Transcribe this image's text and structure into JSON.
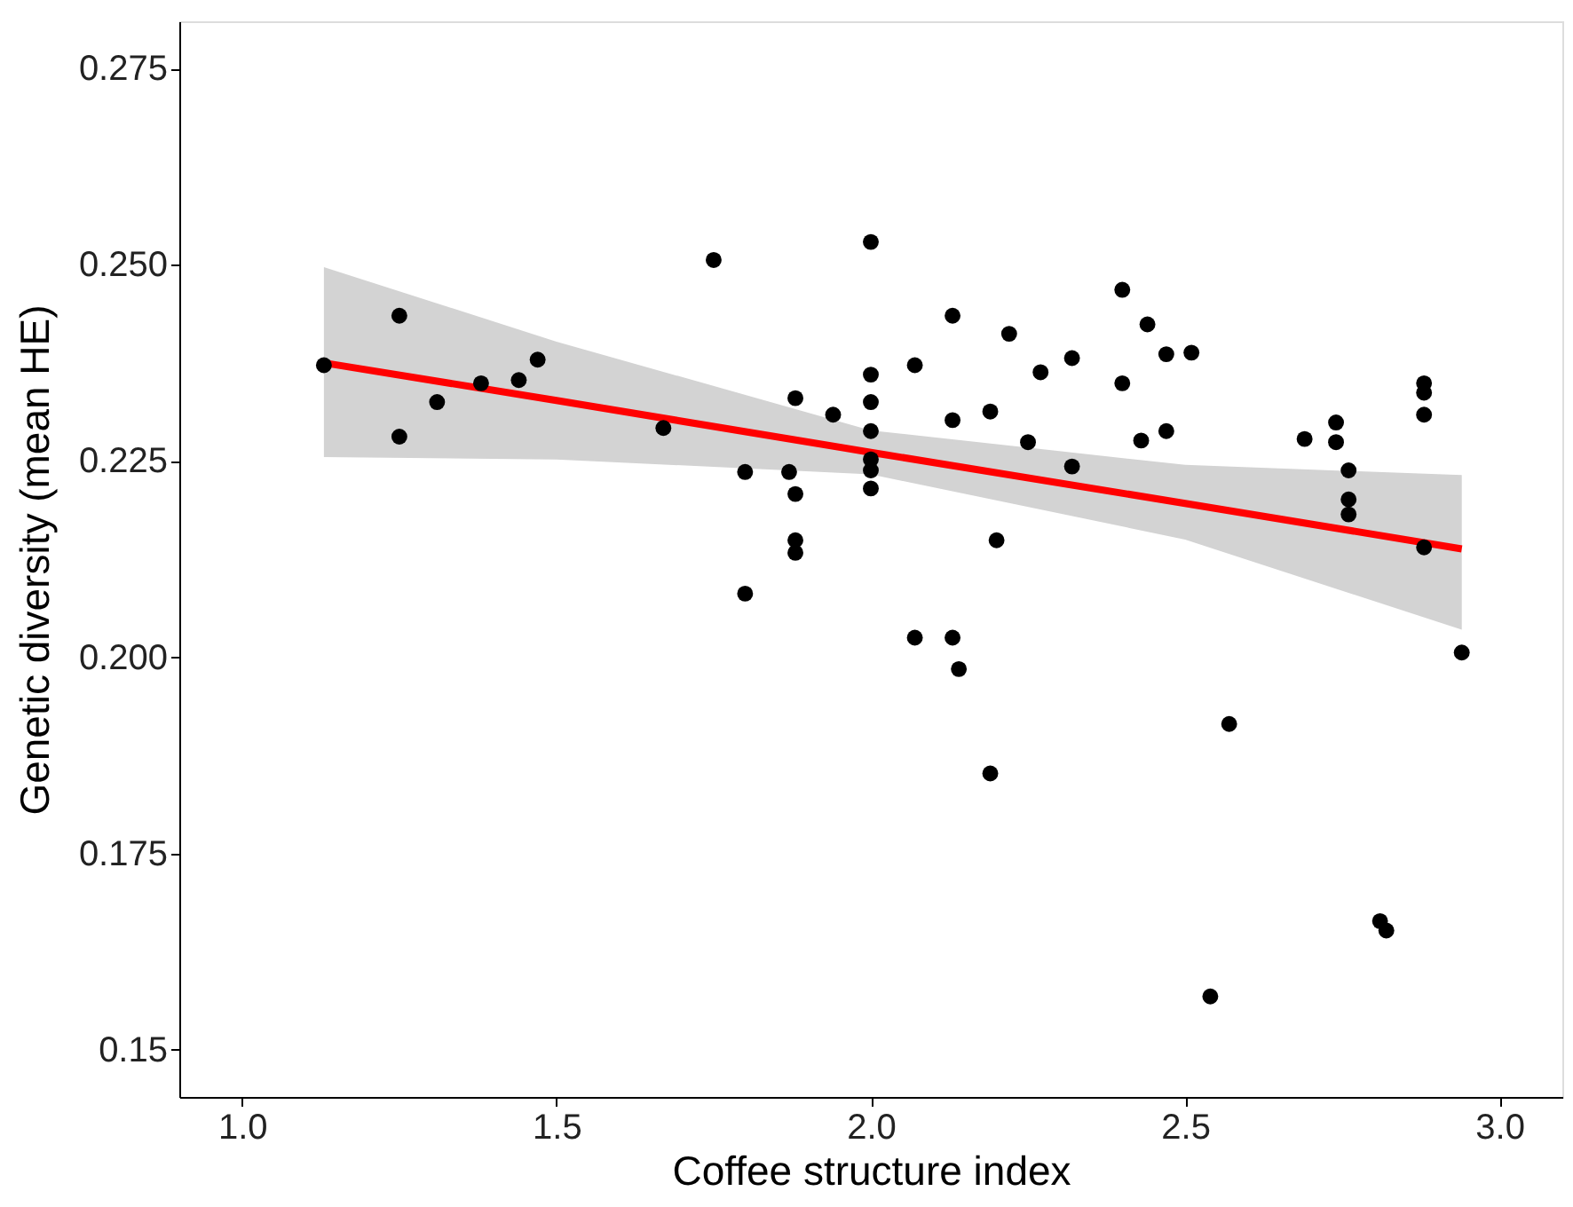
{
  "chart_data": {
    "type": "scatter",
    "xlabel": "Coffee structure index",
    "ylabel": "Genetic diversity (mean HE)",
    "xlim": [
      0.9,
      3.1
    ],
    "ylim": [
      0.144,
      0.281
    ],
    "xticks": [
      {
        "value": 1,
        "label": "1.0"
      },
      1.5,
      {
        "value": 2,
        "label": "2.0"
      },
      2.5,
      {
        "value": 3,
        "label": "3.0"
      }
    ],
    "yticks": [
      0.15,
      0.175,
      {
        "value": 0.2,
        "label": "0.200"
      },
      0.225,
      {
        "value": 0.25,
        "label": "0.250"
      },
      0.275
    ],
    "grid": false,
    "series": [
      {
        "type": "line",
        "color": "#ff0000",
        "line_style": "solid",
        "x": [
          1.13,
          1.5,
          2.0,
          2.5,
          2.94
        ],
        "values": [
          0.2375,
          0.2327,
          0.2261,
          0.2196,
          0.2138
        ],
        "lower": [
          0.2255,
          0.2252,
          0.2233,
          0.215,
          0.2035
        ],
        "upper": [
          0.2497,
          0.2402,
          0.2289,
          0.2245,
          0.2232
        ]
      },
      {
        "color": "#000000",
        "marker": "circle",
        "x": [
          1.13,
          1.25,
          1.25,
          1.31,
          1.38,
          1.44,
          1.47,
          1.67,
          1.75,
          1.8,
          1.8,
          1.87,
          1.88,
          1.88,
          1.88,
          1.88,
          1.94,
          2.0,
          2.0,
          2.0,
          2.0,
          2.0,
          2.0,
          2.0,
          2.07,
          2.07,
          2.13,
          2.13,
          2.13,
          2.14,
          2.19,
          2.19,
          2.2,
          2.22,
          2.25,
          2.27,
          2.32,
          2.32,
          2.4,
          2.4,
          2.43,
          2.44,
          2.47,
          2.47,
          2.51,
          2.54,
          2.57,
          2.69,
          2.74,
          2.74,
          2.76,
          2.76,
          2.76,
          2.81,
          2.82,
          2.88,
          2.88,
          2.88,
          2.88,
          2.94
        ],
        "values": [
          0.2372,
          0.2435,
          0.2281,
          0.2325,
          0.2349,
          0.2353,
          0.2379,
          0.2292,
          0.2506,
          0.2081,
          0.2236,
          0.2236,
          0.233,
          0.2208,
          0.2149,
          0.2133,
          0.2309,
          0.2529,
          0.236,
          0.2325,
          0.2288,
          0.2252,
          0.2238,
          0.2215,
          0.2372,
          0.2025,
          0.2435,
          0.2302,
          0.2025,
          0.1985,
          0.1852,
          0.2313,
          0.2149,
          0.2412,
          0.2274,
          0.2363,
          0.2381,
          0.2243,
          0.2468,
          0.2349,
          0.2276,
          0.2424,
          0.2288,
          0.2386,
          0.2388,
          0.1568,
          0.1915,
          0.2278,
          0.2299,
          0.2274,
          0.2238,
          0.2201,
          0.2182,
          0.1664,
          0.1652,
          0.214,
          0.2349,
          0.2337,
          0.2309,
          0.2006
        ]
      }
    ]
  }
}
